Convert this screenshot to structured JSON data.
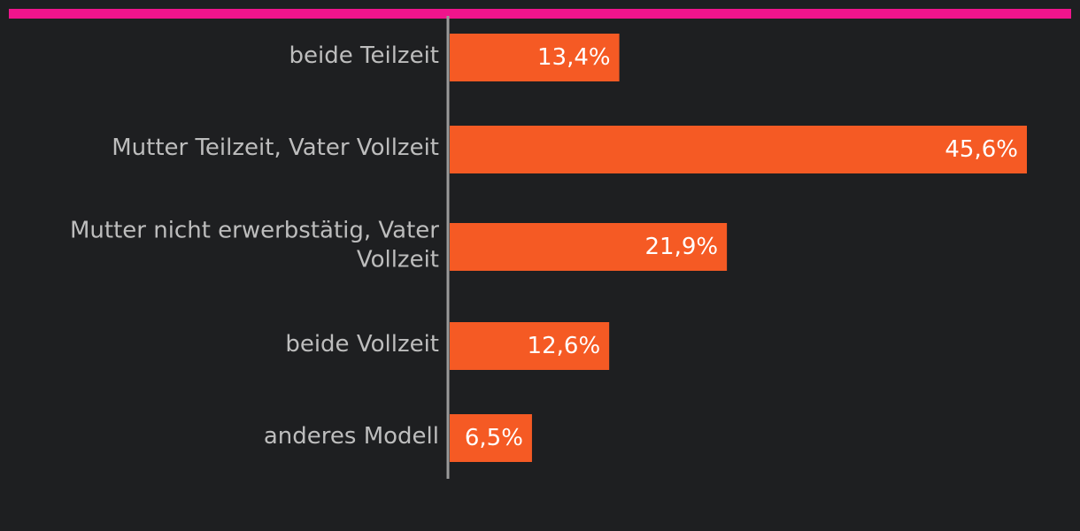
{
  "chart_data": {
    "type": "bar",
    "orientation": "horizontal",
    "categories": [
      "beide Teilzeit",
      "Mutter Teilzeit, Vater Vollzeit",
      "Mutter nicht erwerbstätig, Vater Vollzeit",
      "beide Vollzeit",
      "anderes Modell"
    ],
    "category_lines": [
      [
        "beide Teilzeit"
      ],
      [
        "Mutter Teilzeit, Vater Vollzeit"
      ],
      [
        "Mutter nicht erwerbstätig, Vater",
        "Vollzeit"
      ],
      [
        "beide Vollzeit"
      ],
      [
        "anderes Modell"
      ]
    ],
    "values": [
      13.4,
      45.6,
      21.9,
      12.6,
      6.5
    ],
    "value_labels": [
      "13,4%",
      "45,6%",
      "21,9%",
      "12,6%",
      "6,5%"
    ],
    "xlim": [
      0,
      45.6
    ],
    "grid": false,
    "legend": "none",
    "colors": {
      "bar": "#f55a24",
      "top_band": "#f0148c",
      "axis": "#9a9a9a",
      "background": "#1e1f21",
      "category_text": "#bdbdbd",
      "value_text": "#ffffff"
    }
  }
}
